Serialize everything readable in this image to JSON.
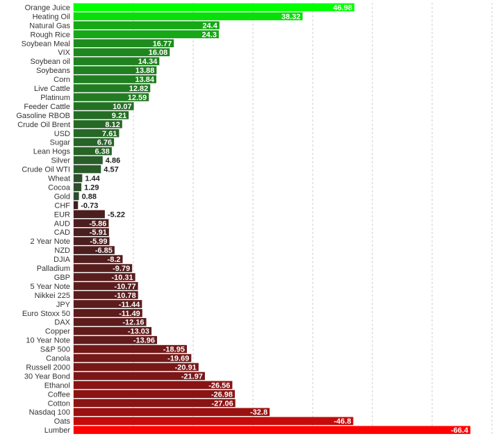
{
  "chart_data": {
    "type": "bar",
    "orientation": "horizontal",
    "title": "",
    "xlabel": "",
    "ylabel": "",
    "xlim": [
      -70,
      50
    ],
    "grid": true,
    "categories": [
      "Orange Juice",
      "Heating Oil",
      "Natural Gas",
      "Rough Rice",
      "Soybean Meal",
      "VIX",
      "Soybean oil",
      "Soybeans",
      "Corn",
      "Live Cattle",
      "Platinum",
      "Feeder Cattle",
      "Gasoline RBOB",
      "Crude Oil Brent",
      "USD",
      "Sugar",
      "Lean Hogs",
      "Silver",
      "Crude Oil WTI",
      "Wheat",
      "Cocoa",
      "Gold",
      "CHF",
      "EUR",
      "AUD",
      "CAD",
      "2 Year Note",
      "NZD",
      "DJIA",
      "Palladium",
      "GBP",
      "5 Year Note",
      "Nikkei 225",
      "JPY",
      "Euro Stoxx 50",
      "DAX",
      "Copper",
      "10 Year Note",
      "S&P 500",
      "Canola",
      "Russell 2000",
      "30 Year Bond",
      "Ethanol",
      "Coffee",
      "Cotton",
      "Nasdaq 100",
      "Oats",
      "Lumber"
    ],
    "values": [
      46.98,
      38.32,
      24.4,
      24.3,
      16.77,
      16.08,
      14.34,
      13.88,
      13.84,
      12.82,
      12.59,
      10.07,
      9.21,
      8.12,
      7.61,
      6.76,
      6.38,
      4.86,
      4.57,
      1.44,
      1.29,
      0.88,
      -0.73,
      -5.22,
      -5.86,
      -5.91,
      -5.99,
      -6.85,
      -8.2,
      -9.79,
      -10.31,
      -10.77,
      -10.78,
      -11.44,
      -11.49,
      -12.16,
      -13.03,
      -13.96,
      -18.95,
      -19.69,
      -20.91,
      -21.97,
      -26.56,
      -26.98,
      -27.06,
      -32.8,
      -46.8,
      -66.4
    ],
    "value_labels": [
      "46.98",
      "38.32",
      "24.4",
      "24.3",
      "16.77",
      "16.08",
      "14.34",
      "13.88",
      "13.84",
      "12.82",
      "12.59",
      "10.07",
      "9.21",
      "8.12",
      "7.61",
      "6.76",
      "6.38",
      "4.86",
      "4.57",
      "1.44",
      "1.29",
      "0.88",
      "-0.73",
      "-5.22",
      "-5.86",
      "-5.91",
      "-5.99",
      "-6.85",
      "-8.2",
      "-9.79",
      "-10.31",
      "-10.77",
      "-10.78",
      "-11.44",
      "-11.49",
      "-12.16",
      "-13.03",
      "-13.96",
      "-18.95",
      "-19.69",
      "-20.91",
      "-21.97",
      "-26.56",
      "-26.98",
      "-27.06",
      "-32.8",
      "-46.8",
      "-66.4"
    ],
    "colors": {
      "positive_max": "#00ff00",
      "positive_min": "#2e4a2e",
      "negative_min": "#3a2222",
      "negative_max": "#ff0000",
      "grid": "#cccccc"
    }
  }
}
